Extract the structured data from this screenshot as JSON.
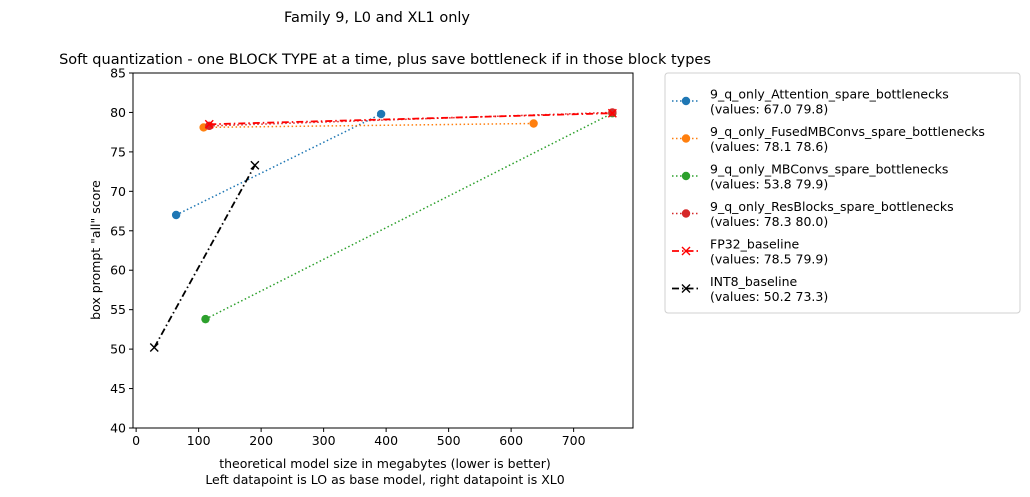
{
  "chart_data": {
    "type": "line",
    "title": "Family 9, L0 and XL1 only",
    "subtitle": "Soft quantization - one BLOCK TYPE at a time, plus save bottleneck if in those block types",
    "xlabel": "theoretical model size in megabytes (lower is better)",
    "xlabel2": "Left datapoint is LO as base model, right datapoint is XL0",
    "ylabel": "box prompt \"all\" score",
    "xlim": [
      -5,
      795
    ],
    "ylim": [
      40,
      85
    ],
    "xticks": [
      "0",
      "100",
      "200",
      "300",
      "400",
      "500",
      "600",
      "700"
    ],
    "yticks": [
      "40",
      "45",
      "50",
      "55",
      "60",
      "65",
      "70",
      "75",
      "80",
      "85"
    ],
    "grid": false,
    "legend_position": "outside-right",
    "series": [
      {
        "name": "9_q_only_Attention_spare_bottlenecks",
        "legend_values": "(values: 67.0 79.8)",
        "color": "#1f77b4",
        "linestyle": "dotted",
        "marker": "circle",
        "x": [
          64,
          392
        ],
        "y": [
          67.0,
          79.8
        ]
      },
      {
        "name": "9_q_only_FusedMBConvs_spare_bottlenecks",
        "legend_values": "(values: 78.1 78.6)",
        "color": "#ff7f0e",
        "linestyle": "dotted",
        "marker": "circle",
        "x": [
          108,
          636
        ],
        "y": [
          78.1,
          78.6
        ]
      },
      {
        "name": "9_q_only_MBConvs_spare_bottlenecks",
        "legend_values": "(values: 53.8 79.9)",
        "color": "#2ca02c",
        "linestyle": "dotted",
        "marker": "circle",
        "x": [
          111,
          762
        ],
        "y": [
          53.8,
          79.9
        ]
      },
      {
        "name": "9_q_only_ResBlocks_spare_bottlenecks",
        "legend_values": "(values: 78.3 80.0)",
        "color": "#d62728",
        "linestyle": "dotted",
        "marker": "circle",
        "x": [
          117,
          762
        ],
        "y": [
          78.3,
          80.0
        ]
      },
      {
        "name": "FP32_baseline",
        "legend_values": "(values: 78.5 79.9)",
        "color": "#ff0000",
        "linestyle": "dashdot",
        "marker": "x",
        "x": [
          117,
          762
        ],
        "y": [
          78.5,
          79.9
        ]
      },
      {
        "name": "INT8_baseline",
        "legend_values": "(values: 50.2 73.3)",
        "color": "#000000",
        "linestyle": "dashdot",
        "marker": "x",
        "x": [
          29,
          190
        ],
        "y": [
          50.2,
          73.3
        ]
      }
    ]
  }
}
